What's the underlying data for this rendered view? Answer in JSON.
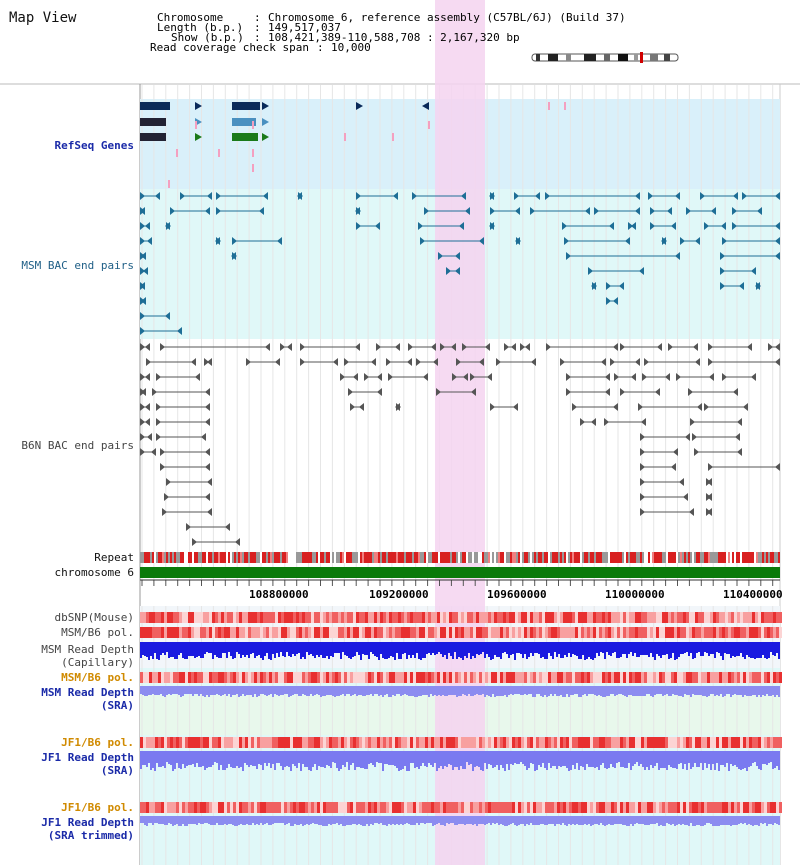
{
  "header": {
    "title": "Map View",
    "chromosome_key": "Chromosome",
    "chromosome_value": "Chromosome 6, reference assembly (C57BL/6J) (Build 37)",
    "length_key": "Length (b.p.)",
    "length_value": "149,517,037",
    "show_key": "Show (b.p.)",
    "show_value": "108,421,389-110,588,708 : 2,167,320 bp",
    "coverage_key": "Read coverage check span",
    "coverage_value": "10,000"
  },
  "tracks": {
    "refseq": "RefSeq Genes",
    "msm_bac": "MSM BAC end pairs",
    "b6n_bac": "B6N BAC end pairs",
    "repeat": "Repeat",
    "chromosome": "chromosome 6",
    "dbsnp": "dbSNP(Mouse)",
    "msm_b6_pol_1": "MSM/B6 pol.",
    "msm_read_depth_cap_1": "MSM Read Depth",
    "msm_read_depth_cap_2": "(Capillary)",
    "msm_b6_pol_2": "MSM/B6 pol.",
    "msm_read_depth_sra_1": "MSM Read Depth",
    "msm_read_depth_sra_2": "(SRA)",
    "jf1_b6_pol_1": "JF1/B6 pol.",
    "jf1_read_depth_sra_1": "JF1 Read Depth",
    "jf1_read_depth_sra_2": "(SRA)",
    "jf1_b6_pol_2": "JF1/B6 pol.",
    "jf1_read_depth_trim_1": "JF1 Read Depth",
    "jf1_read_depth_trim_2": "(SRA trimmed)"
  },
  "axis": {
    "ticks": [
      "108800000",
      "109200000",
      "109600000",
      "110000000",
      "110400000"
    ]
  },
  "colors": {
    "highlight": "#f5d4f0",
    "refseq_bg": "#d9f0fa",
    "msm_bg": "#e0f8f8",
    "sra_bg": "#e8f8ec",
    "chromosome_bar": "#0a7a0a",
    "navy_label": "#1a2aa8",
    "teal_label": "#1e5e86",
    "gray_label": "#444444",
    "orange_label": "#d08a00"
  }
}
